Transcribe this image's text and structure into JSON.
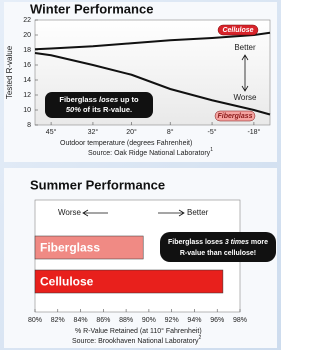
{
  "chart_data": [
    {
      "type": "line",
      "title": "Winter Performance",
      "ylabel": "Tested R-value",
      "xlabel": "Outdoor temperature (degrees Fahrenheit)",
      "source": "Source:   Oak Ridge National Laboratory",
      "source_note": "1",
      "x": [
        50,
        45,
        32,
        20,
        8,
        -5,
        -18,
        -23
      ],
      "xlim": [
        50,
        -23
      ],
      "xticks": [
        {
          "value": 45,
          "label": "45°"
        },
        {
          "value": 32,
          "label": "32°"
        },
        {
          "value": 20,
          "label": "20°"
        },
        {
          "value": 8,
          "label": "8°"
        },
        {
          "value": -5,
          "label": "-5°"
        },
        {
          "value": -18,
          "label": "-18°"
        }
      ],
      "ylim": [
        8,
        22
      ],
      "yticks": [
        8,
        10,
        12,
        14,
        16,
        18,
        20,
        22
      ],
      "series": [
        {
          "name": "Cellulose",
          "color": "#111111",
          "label_color": "#d8232a",
          "values": [
            18.1,
            18.2,
            18.5,
            18.9,
            19.3,
            19.6,
            20.0,
            20.3
          ]
        },
        {
          "name": "Fiberglass",
          "color": "#111111",
          "label_color": "#f4a3a0",
          "values": [
            17.6,
            17.3,
            16.0,
            14.7,
            12.8,
            11.3,
            10.0,
            9.4
          ]
        }
      ],
      "better": "Better",
      "worse": "Worse",
      "callout": [
        "Fiberglass ",
        "loses",
        " up to",
        "50%",
        " of its R-value."
      ]
    },
    {
      "type": "bar",
      "orientation": "horizontal",
      "title": "Summer Performance",
      "xlabel": "% R-Value Retained (at 110° Fahrenheit)",
      "source": "Source:  Brookhaven National Laboratory",
      "source_note": "2",
      "categories": [
        "Fiberglass",
        "Cellulose"
      ],
      "values": [
        89.5,
        96.5
      ],
      "colors": [
        "#f08a84",
        "#e8201c"
      ],
      "xlim": [
        80,
        98
      ],
      "xticks": [
        {
          "value": 80,
          "label": "80%"
        },
        {
          "value": 82,
          "label": "82%"
        },
        {
          "value": 84,
          "label": "84%"
        },
        {
          "value": 86,
          "label": "86%"
        },
        {
          "value": 88,
          "label": "88%"
        },
        {
          "value": 90,
          "label": "90%"
        },
        {
          "value": 92,
          "label": "92%"
        },
        {
          "value": 94,
          "label": "94%"
        },
        {
          "value": 96,
          "label": "96%"
        },
        {
          "value": 98,
          "label": "98%"
        }
      ],
      "better": "Better",
      "worse": "Worse",
      "callout": [
        "Fiberglass loses ",
        "3 times",
        " more",
        "R-value than cellulose!"
      ]
    }
  ]
}
